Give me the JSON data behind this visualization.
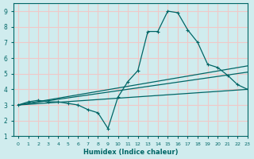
{
  "xlabel": "Humidex (Indice chaleur)",
  "ylabel": "",
  "bg_color": "#d0ecee",
  "grid_color": "#f0c8c8",
  "line_color": "#006666",
  "xlim": [
    -0.5,
    23
  ],
  "ylim": [
    1,
    9.5
  ],
  "xticks": [
    0,
    1,
    2,
    3,
    4,
    5,
    6,
    7,
    8,
    9,
    10,
    11,
    12,
    13,
    14,
    15,
    16,
    17,
    18,
    19,
    20,
    21,
    22,
    23
  ],
  "yticks": [
    1,
    2,
    3,
    4,
    5,
    6,
    7,
    8,
    9
  ],
  "line1_x": [
    0,
    1,
    2,
    3,
    4,
    5,
    6,
    7,
    8,
    9,
    10,
    11,
    12,
    13,
    14,
    15,
    16,
    17,
    18,
    19,
    20,
    21,
    22,
    23
  ],
  "line1_y": [
    3.0,
    3.2,
    3.3,
    3.2,
    3.2,
    3.1,
    3.0,
    2.7,
    2.5,
    1.5,
    3.5,
    4.5,
    5.2,
    7.7,
    7.7,
    9.0,
    8.9,
    7.8,
    7.0,
    5.6,
    5.4,
    4.9,
    4.3,
    4.0
  ],
  "line2_x": [
    0,
    23
  ],
  "line2_y": [
    3.0,
    5.5
  ],
  "line3_x": [
    0,
    23
  ],
  "line3_y": [
    3.0,
    5.1
  ],
  "line4_x": [
    0,
    23
  ],
  "line4_y": [
    3.0,
    4.0
  ]
}
